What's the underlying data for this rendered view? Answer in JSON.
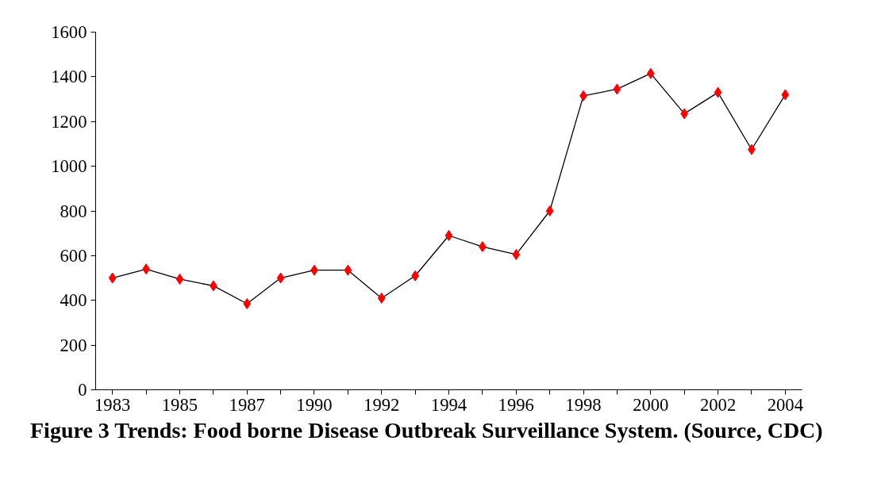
{
  "chart_data": {
    "type": "line",
    "title": "Figure 3 Trends: Food borne Disease Outbreak Surveillance System. (Source, CDC)",
    "categories": [
      "1983",
      null,
      "1985",
      null,
      "1987",
      null,
      "1990",
      null,
      "1992",
      null,
      "1994",
      null,
      "1996",
      null,
      "1998",
      null,
      "2000",
      null,
      "2002",
      null,
      "2004"
    ],
    "series": [
      {
        "color": "#ff0000",
        "values": [
          500,
          540,
          495,
          465,
          385,
          500,
          535,
          535,
          410,
          510,
          690,
          640,
          605,
          800,
          1315,
          1345,
          1415,
          1235,
          1330,
          1075,
          1320
        ]
      }
    ],
    "ylim": [
      0,
      1600
    ],
    "yticks": [
      0,
      200,
      400,
      600,
      800,
      1000,
      1200,
      1400,
      1600
    ],
    "grid": false,
    "marker": "diamond",
    "line_style": "solid"
  }
}
